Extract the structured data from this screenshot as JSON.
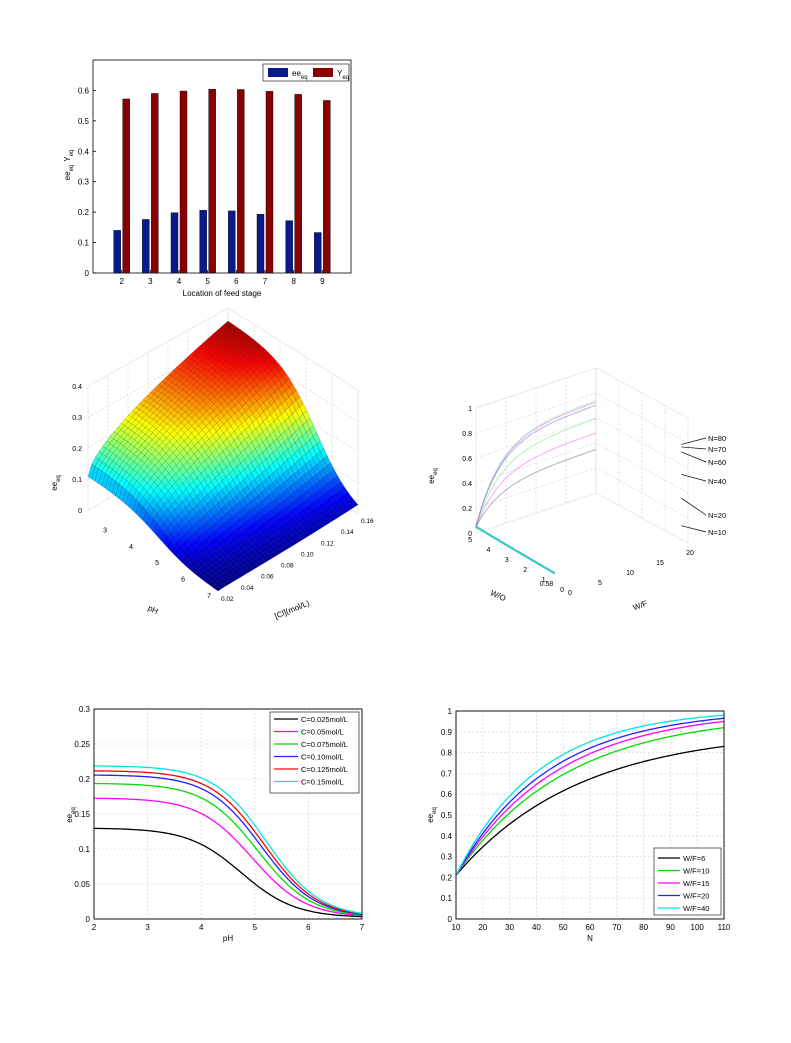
{
  "chart_data": [
    {
      "type": "bar",
      "categories": [
        "2",
        "3",
        "4",
        "5",
        "6",
        "7",
        "8",
        "9"
      ],
      "series": [
        {
          "name": "ee_eq",
          "color": "#0a1a8c",
          "values": [
            0.14,
            0.176,
            0.198,
            0.206,
            0.204,
            0.193,
            0.172,
            0.133
          ]
        },
        {
          "name": "Y_eq",
          "color": "#8b0000",
          "values": [
            0.572,
            0.59,
            0.598,
            0.604,
            0.603,
            0.597,
            0.587,
            0.567
          ]
        }
      ],
      "legend_labels": [
        {
          "main": "ee",
          "sub": "eq"
        },
        {
          "main": "Y",
          "sub": "eq"
        }
      ],
      "xlabel": "Location of feed stage",
      "ylabel": {
        "a": "ee",
        "a_sub": "eq",
        "b": "Y",
        "b_sub": "eq"
      },
      "ylim": [
        0,
        0.7
      ],
      "yticks": [
        "0",
        "0.1",
        "0.2",
        "0.3",
        "0.4",
        "0.5",
        "0.6"
      ],
      "legend_position": "top-right"
    },
    {
      "type": "surface",
      "x_axis": {
        "label": "pH",
        "ticks": [
          "3",
          "4",
          "5",
          "6",
          "7"
        ],
        "range": [
          2,
          7
        ]
      },
      "y_axis": {
        "label": "[Cl](mol/L)",
        "ticks": [
          "0.02",
          "0.04",
          "0.06",
          "0.08",
          "0.10",
          "0.12",
          "0.14",
          "0.16"
        ],
        "range": [
          0.02,
          0.16
        ]
      },
      "z_axis": {
        "label": "ee",
        "label_sub": "eq",
        "ticks": [
          "0",
          "0.1",
          "0.2",
          "0.3",
          "0.4"
        ],
        "range": [
          0,
          0.4
        ]
      },
      "colormap": "jet",
      "grid": true
    },
    {
      "type": "line3d",
      "x_axis": {
        "label": "W/F",
        "ticks": [
          "0",
          "5",
          "10",
          "15",
          "20"
        ]
      },
      "y_axis": {
        "label": "W/O",
        "ticks": [
          "0",
          "0.58",
          "1",
          "2",
          "3",
          "4",
          "5"
        ]
      },
      "z_axis": {
        "label": "ee",
        "label_sub": "eq",
        "ticks": [
          "0",
          "0.2",
          "0.4",
          "0.6",
          "0.8",
          "1"
        ]
      },
      "series": [
        {
          "name": "N=10",
          "color": "#222222"
        },
        {
          "name": "N=20",
          "color": "#ff00ff"
        },
        {
          "name": "N=40",
          "color": "#22dd22"
        },
        {
          "name": "N=60",
          "color": "#2222dd"
        },
        {
          "name": "N=70",
          "color": "#ee2222"
        },
        {
          "name": "N=80",
          "color": "#22dddd"
        }
      ],
      "grid": true
    },
    {
      "type": "line",
      "xlabel": "pH",
      "ylabel": {
        "main": "ee",
        "sub": "eq"
      },
      "xlim": [
        2,
        7
      ],
      "ylim": [
        0,
        0.3
      ],
      "xticks": [
        "2",
        "3",
        "4",
        "5",
        "6",
        "7"
      ],
      "yticks": [
        "0",
        "0.05",
        "0.1",
        "0.15",
        "0.2",
        "0.25",
        "0.3"
      ],
      "series": [
        {
          "name": "C=0.025mol/L",
          "color": "#000000",
          "plateau": 0.128,
          "mid": 4.75
        },
        {
          "name": "C=0.05mol/L",
          "color": "#ff00ff",
          "plateau": 0.171,
          "mid": 4.95
        },
        {
          "name": "C=0.075mol/L",
          "color": "#00dd00",
          "plateau": 0.192,
          "mid": 5.05
        },
        {
          "name": "C=0.10mol/L",
          "color": "#2020ff",
          "plateau": 0.204,
          "mid": 5.12
        },
        {
          "name": "C=0.125mol/L",
          "color": "#ff0000",
          "plateau": 0.21,
          "mid": 5.17
        },
        {
          "name": "C=0.15mol/L",
          "color": "#00e5e5",
          "plateau": 0.217,
          "mid": 5.22
        }
      ],
      "legend_position": "top-right",
      "grid": true
    },
    {
      "type": "line",
      "xlabel": "N",
      "ylabel": {
        "main": "ee",
        "sub": "eq"
      },
      "xlim": [
        10,
        110
      ],
      "ylim": [
        0,
        1
      ],
      "xticks": [
        "10",
        "20",
        "30",
        "40",
        "50",
        "60",
        "70",
        "80",
        "90",
        "100",
        "110"
      ],
      "yticks": [
        "0",
        "0.1",
        "0.2",
        "0.3",
        "0.4",
        "0.5",
        "0.6",
        "0.7",
        "0.8",
        "0.9",
        "1"
      ],
      "series": [
        {
          "name": "W/F=6",
          "color": "#000000",
          "y10": 0.21,
          "y110": 0.83
        },
        {
          "name": "W/F=10",
          "color": "#00dd00",
          "y10": 0.21,
          "y110": 0.92
        },
        {
          "name": "W/F=15",
          "color": "#ff00ff",
          "y10": 0.21,
          "y110": 0.95
        },
        {
          "name": "W/F=20",
          "color": "#2020ff",
          "y10": 0.21,
          "y110": 0.965
        },
        {
          "name": "W/F=40",
          "color": "#00e5e5",
          "y10": 0.21,
          "y110": 0.98
        }
      ],
      "legend_position": "bottom-right",
      "grid": true
    }
  ]
}
